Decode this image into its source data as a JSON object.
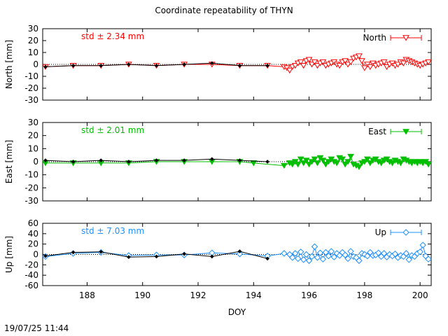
{
  "page_title": "Coordinate repeatability of THYN",
  "timestamp": "19/07/25 11:44",
  "chart_data": [
    {
      "type": "line",
      "panel": "north",
      "title": "",
      "xlabel": "",
      "ylabel": "North [mm]",
      "xlim": [
        186.4,
        200.4
      ],
      "ylim": [
        -30,
        30
      ],
      "yticks": [
        30,
        20,
        10,
        0,
        -10,
        -20,
        -30
      ],
      "xticks": [],
      "grid": false,
      "legend": "top-right",
      "annotation": "std ± 2.34 mm",
      "color": "#ff0000",
      "marker": "triangle-down-open",
      "series": [
        {
          "name": "North",
          "color": "#ff0000",
          "x": [
            186.5,
            187.5,
            188.5,
            189.5,
            190.5,
            191.5,
            192.5,
            193.5,
            194.5,
            195.1,
            195.2,
            195.3,
            195.4,
            195.5,
            195.6,
            195.7,
            195.8,
            195.9,
            196.0,
            196.1,
            196.2,
            196.3,
            196.4,
            196.5,
            196.6,
            196.7,
            196.8,
            196.9,
            197.0,
            197.1,
            197.2,
            197.3,
            197.4,
            197.5,
            197.6,
            197.7,
            197.8,
            197.9,
            198.0,
            198.1,
            198.2,
            198.3,
            198.4,
            198.5,
            198.6,
            198.7,
            198.8,
            198.9,
            199.0,
            199.1,
            199.2,
            199.3,
            199.4,
            199.5,
            199.6,
            199.7,
            199.8,
            199.9,
            200.0,
            200.1,
            200.2,
            200.3
          ],
          "y": [
            -2,
            -1,
            -1,
            0,
            -1,
            0,
            0,
            -1,
            -1,
            -2,
            -3,
            -5,
            -2,
            -1,
            1,
            2,
            -1,
            3,
            4,
            0,
            2,
            -1,
            1,
            2,
            -1,
            0,
            1,
            2,
            0,
            -1,
            2,
            3,
            0,
            2,
            5,
            6,
            7,
            3,
            -3,
            0,
            -2,
            1,
            -1,
            0,
            1,
            2,
            -2,
            0,
            1,
            -1,
            0,
            2,
            1,
            4,
            3,
            2,
            1,
            0,
            -1,
            0,
            1,
            2
          ]
        },
        {
          "name": "",
          "color": "#000000",
          "x": [
            186.5,
            187.5,
            188.5,
            189.5,
            190.5,
            191.5,
            192.5,
            193.5,
            194.5
          ],
          "y": [
            -2,
            -1,
            -1,
            0,
            -1,
            0,
            1,
            -1,
            -1
          ]
        }
      ]
    },
    {
      "type": "line",
      "panel": "east",
      "title": "",
      "xlabel": "",
      "ylabel": "East [mm]",
      "xlim": [
        186.4,
        200.4
      ],
      "ylim": [
        -30,
        30
      ],
      "yticks": [
        30,
        20,
        10,
        0,
        -10,
        -20,
        -30
      ],
      "xticks": [],
      "grid": false,
      "legend": "top-right",
      "annotation": "std ± 2.01 mm",
      "color": "#00c000",
      "marker": "triangle-down-filled",
      "series": [
        {
          "name": "East",
          "color": "#00c000",
          "x": [
            186.5,
            187.5,
            188.5,
            189.5,
            190.5,
            191.5,
            192.5,
            193.5,
            194.0,
            195.1,
            195.3,
            195.4,
            195.5,
            195.6,
            195.7,
            195.8,
            195.9,
            196.0,
            196.1,
            196.2,
            196.3,
            196.4,
            196.5,
            196.6,
            196.7,
            196.8,
            196.9,
            197.0,
            197.1,
            197.2,
            197.3,
            197.4,
            197.5,
            197.6,
            197.7,
            197.8,
            197.9,
            198.0,
            198.1,
            198.2,
            198.3,
            198.4,
            198.5,
            198.6,
            198.7,
            198.8,
            198.9,
            199.0,
            199.1,
            199.2,
            199.3,
            199.4,
            199.5,
            199.6,
            199.7,
            199.8,
            199.9,
            200.0,
            200.1,
            200.2,
            200.3
          ],
          "y": [
            -1,
            -1,
            -1,
            -1,
            0,
            0,
            0,
            0,
            -1,
            -3,
            -1,
            -2,
            0,
            -2,
            2,
            -1,
            1,
            -2,
            0,
            2,
            -1,
            3,
            1,
            -2,
            0,
            2,
            0,
            -1,
            3,
            2,
            -2,
            0,
            4,
            -2,
            -3,
            -4,
            -1,
            0,
            2,
            -1,
            1,
            2,
            0,
            -1,
            1,
            2,
            0,
            -1,
            1,
            0,
            -1,
            2,
            1,
            0,
            -1,
            0,
            -1,
            0,
            -1,
            0,
            -2
          ]
        },
        {
          "name": "",
          "color": "#000000",
          "x": [
            186.5,
            187.5,
            188.5,
            189.5,
            190.5,
            191.5,
            192.5,
            193.5,
            194.5
          ],
          "y": [
            1,
            0,
            1,
            0,
            1,
            1,
            2,
            1,
            0
          ]
        }
      ]
    },
    {
      "type": "line",
      "panel": "up",
      "title": "",
      "xlabel": "DOY",
      "ylabel": "Up [mm]",
      "xlim": [
        186.4,
        200.4
      ],
      "ylim": [
        -60,
        60
      ],
      "yticks": [
        60,
        40,
        20,
        0,
        -20,
        -40,
        -60
      ],
      "xticks": [
        188,
        190,
        192,
        194,
        196,
        198,
        200
      ],
      "grid": false,
      "legend": "top-right",
      "annotation": "std ± 7.03 mm",
      "color": "#1e90ff",
      "marker": "diamond-open",
      "series": [
        {
          "name": "Up",
          "color": "#1e90ff",
          "x": [
            186.5,
            187.5,
            188.5,
            189.5,
            190.5,
            191.5,
            192.5,
            193.5,
            194.5,
            195.1,
            195.3,
            195.4,
            195.5,
            195.6,
            195.7,
            195.8,
            195.9,
            196.0,
            196.1,
            196.2,
            196.3,
            196.4,
            196.5,
            196.6,
            196.7,
            196.8,
            196.9,
            197.0,
            197.1,
            197.2,
            197.3,
            197.4,
            197.5,
            197.6,
            197.7,
            197.8,
            197.9,
            198.0,
            198.1,
            198.2,
            198.3,
            198.4,
            198.5,
            198.6,
            198.7,
            198.8,
            198.9,
            199.0,
            199.1,
            199.2,
            199.3,
            199.4,
            199.5,
            199.6,
            199.7,
            199.8,
            199.9,
            200.0,
            200.1,
            200.2,
            200.3
          ],
          "y": [
            -4,
            2,
            4,
            -2,
            -1,
            -1,
            3,
            1,
            -3,
            2,
            0,
            -6,
            2,
            -8,
            5,
            -10,
            0,
            -12,
            -4,
            15,
            -6,
            3,
            -9,
            4,
            -3,
            6,
            -5,
            2,
            -2,
            4,
            -1,
            -8,
            6,
            -4,
            -6,
            -12,
            2,
            0,
            -3,
            4,
            -2,
            -1,
            3,
            -4,
            2,
            -5,
            0,
            -3,
            1,
            -6,
            -2,
            -4,
            2,
            -10,
            -2,
            -4,
            2,
            5,
            18,
            -3,
            -9
          ]
        },
        {
          "name": "",
          "color": "#000000",
          "x": [
            186.5,
            187.5,
            188.5,
            189.5,
            190.5,
            191.5,
            192.5,
            193.5,
            194.5
          ],
          "y": [
            -3,
            4,
            5,
            -5,
            -4,
            1,
            -4,
            6,
            -8
          ]
        }
      ]
    }
  ]
}
